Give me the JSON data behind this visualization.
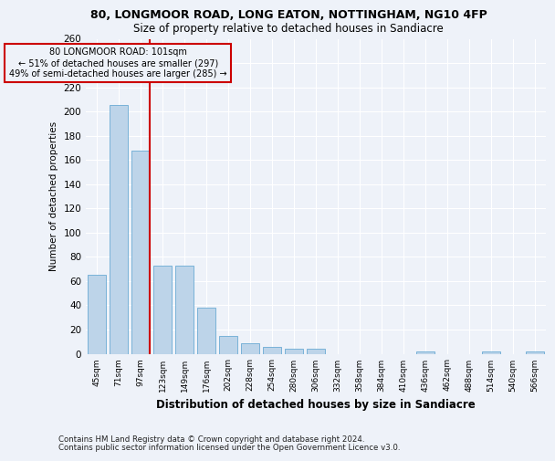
{
  "title1": "80, LONGMOOR ROAD, LONG EATON, NOTTINGHAM, NG10 4FP",
  "title2": "Size of property relative to detached houses in Sandiacre",
  "xlabel": "Distribution of detached houses by size in Sandiacre",
  "ylabel": "Number of detached properties",
  "footer_line1": "Contains HM Land Registry data © Crown copyright and database right 2024.",
  "footer_line2": "Contains public sector information licensed under the Open Government Licence v3.0.",
  "annotation_line1": "80 LONGMOOR ROAD: 101sqm",
  "annotation_line2": "← 51% of detached houses are smaller (297)",
  "annotation_line3": "49% of semi-detached houses are larger (285) →",
  "bar_color": "#bdd4e9",
  "bar_edge_color": "#6aaad4",
  "ref_line_color": "#cc0000",
  "box_edge_color": "#cc0000",
  "background_color": "#eef2f9",
  "grid_color": "#ffffff",
  "categories": [
    "45sqm",
    "71sqm",
    "97sqm",
    "123sqm",
    "149sqm",
    "176sqm",
    "202sqm",
    "228sqm",
    "254sqm",
    "280sqm",
    "306sqm",
    "332sqm",
    "358sqm",
    "384sqm",
    "410sqm",
    "436sqm",
    "462sqm",
    "488sqm",
    "514sqm",
    "540sqm",
    "566sqm"
  ],
  "values": [
    65,
    205,
    168,
    73,
    73,
    38,
    15,
    9,
    6,
    4,
    4,
    0,
    0,
    0,
    0,
    2,
    0,
    0,
    2,
    0,
    2
  ],
  "ref_bar_index": 2,
  "ylim": [
    0,
    260
  ],
  "yticks": [
    0,
    20,
    40,
    60,
    80,
    100,
    120,
    140,
    160,
    180,
    200,
    220,
    240,
    260
  ]
}
